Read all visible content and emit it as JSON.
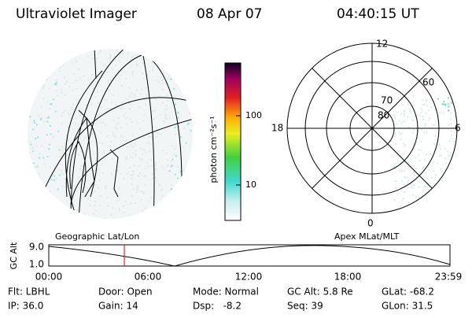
{
  "header": {
    "title": "Ultraviolet Imager",
    "date": "08 Apr 07",
    "time": "04:40:15 UT"
  },
  "colorbar": {
    "label": "photon cm⁻²s⁻¹",
    "ticks": [
      "100",
      "10"
    ]
  },
  "polar": {
    "labels": {
      "top": "12",
      "left": "18",
      "right": "6",
      "bottom": "0"
    },
    "rings": [
      "80",
      "70",
      "60"
    ]
  },
  "timeline": {
    "left_label": "Geographic Lat/Lon",
    "right_label": "Apex MLat/MLT",
    "axis_title": "GC Alt",
    "y_labels": [
      "9.0",
      "1.0"
    ],
    "x_labels": [
      "00:00",
      "06:00",
      "12:00",
      "18:00",
      "23:59"
    ]
  },
  "footer": {
    "rows": [
      [
        "Flt: LBHL",
        "Door: Open",
        "Mode: Normal",
        "GC Alt: 5.8 Re",
        "GLat: -68.2"
      ],
      [
        "IP: 36.0",
        "Gain: 14",
        "Dsp:   -8.2",
        "Seq: 39",
        "GLon: 31.5"
      ]
    ]
  }
}
